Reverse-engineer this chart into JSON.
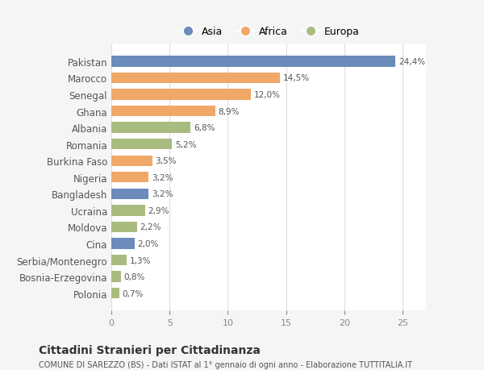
{
  "categories": [
    "Pakistan",
    "Marocco",
    "Senegal",
    "Ghana",
    "Albania",
    "Romania",
    "Burkina Faso",
    "Nigeria",
    "Bangladesh",
    "Ucraina",
    "Moldova",
    "Cina",
    "Serbia/Montenegro",
    "Bosnia-Erzegovina",
    "Polonia"
  ],
  "values": [
    24.4,
    14.5,
    12.0,
    8.9,
    6.8,
    5.2,
    3.5,
    3.2,
    3.2,
    2.9,
    2.2,
    2.0,
    1.3,
    0.8,
    0.7
  ],
  "labels": [
    "24,4%",
    "14,5%",
    "12,0%",
    "8,9%",
    "6,8%",
    "5,2%",
    "3,5%",
    "3,2%",
    "3,2%",
    "2,9%",
    "2,2%",
    "2,0%",
    "1,3%",
    "0,8%",
    "0,7%"
  ],
  "colors": [
    "#6b8cba",
    "#f0a868",
    "#f0a868",
    "#f0a868",
    "#a8bc80",
    "#a8bc80",
    "#f0a868",
    "#f0a868",
    "#6b8cba",
    "#a8bc80",
    "#a8bc80",
    "#6b8cba",
    "#a8bc80",
    "#a8bc80",
    "#a8bc80"
  ],
  "legend_labels": [
    "Asia",
    "Africa",
    "Europa"
  ],
  "legend_colors": [
    "#6b8cba",
    "#f0a868",
    "#a8bc80"
  ],
  "title": "Cittadini Stranieri per Cittadinanza",
  "subtitle": "COMUNE DI SAREZZO (BS) - Dati ISTAT al 1° gennaio di ogni anno - Elaborazione TUTTITALIA.IT",
  "xlim": [
    0,
    27
  ],
  "xticks": [
    0,
    5,
    10,
    15,
    20,
    25
  ],
  "background_color": "#f5f5f5",
  "plot_bg_color": "#ffffff",
  "grid_color": "#dddddd",
  "bar_height": 0.65
}
